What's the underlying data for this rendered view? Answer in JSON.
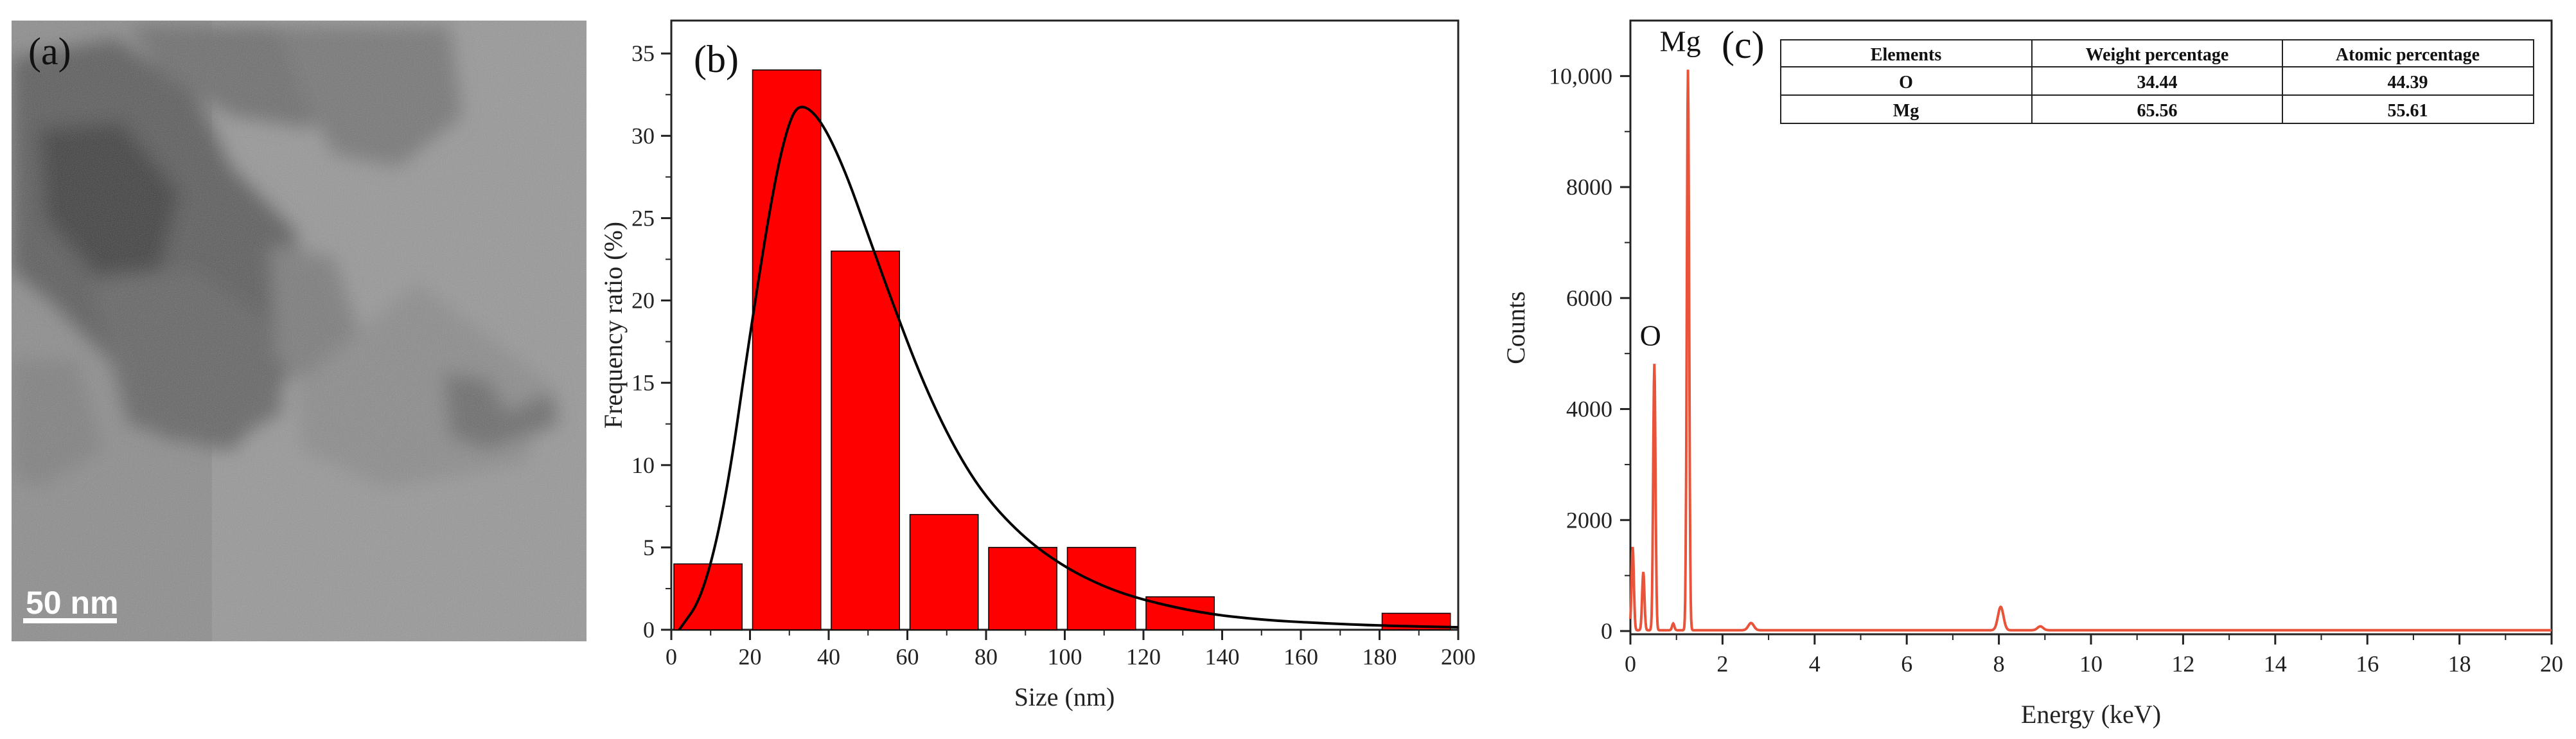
{
  "colors": {
    "bar": "#ff0000",
    "fit": "#000000",
    "eds": "#e8533a",
    "tem_bg": "#8a8a8a"
  },
  "panel_a": {
    "label": "(a)",
    "scale_bar_text": "50 nm"
  },
  "chart_data": [
    {
      "panel": "(b)",
      "type": "bar",
      "xlabel": "Size (nm)",
      "ylabel": "Frequency ratio (%)",
      "xlim": [
        0,
        200
      ],
      "ylim": [
        0,
        37
      ],
      "xticks": [
        "0",
        "20",
        "40",
        "60",
        "80",
        "100",
        "120",
        "140",
        "160",
        "180",
        "200"
      ],
      "yticks": [
        "0",
        "5",
        "10",
        "15",
        "20",
        "25",
        "30",
        "35"
      ],
      "bars": [
        {
          "x0": 0,
          "x1": 18,
          "value": 4
        },
        {
          "x0": 20,
          "x1": 38,
          "value": 34
        },
        {
          "x0": 40,
          "x1": 58,
          "value": 23
        },
        {
          "x0": 60,
          "x1": 78,
          "value": 7
        },
        {
          "x0": 80,
          "x1": 98,
          "value": 5
        },
        {
          "x0": 100,
          "x1": 118,
          "value": 5
        },
        {
          "x0": 120,
          "x1": 138,
          "value": 2
        },
        {
          "x0": 180,
          "x1": 198,
          "value": 1
        }
      ],
      "fit_curve": {
        "type": "lognormal",
        "peak_x": 33,
        "peak_y": 32,
        "points": [
          [
            2,
            0
          ],
          [
            8,
            2
          ],
          [
            14,
            8
          ],
          [
            20,
            18
          ],
          [
            26,
            27
          ],
          [
            30,
            31
          ],
          [
            33,
            32
          ],
          [
            38,
            31
          ],
          [
            44,
            28
          ],
          [
            50,
            24
          ],
          [
            56,
            20
          ],
          [
            64,
            15
          ],
          [
            72,
            11
          ],
          [
            80,
            8
          ],
          [
            90,
            5.5
          ],
          [
            100,
            3.8
          ],
          [
            110,
            2.6
          ],
          [
            120,
            1.8
          ],
          [
            135,
            1.0
          ],
          [
            150,
            0.6
          ],
          [
            165,
            0.4
          ],
          [
            180,
            0.25
          ],
          [
            200,
            0.15
          ]
        ]
      }
    },
    {
      "panel": "(c)",
      "type": "line",
      "xlabel": "Energy (keV)",
      "ylabel": "Counts",
      "xlim": [
        0,
        20
      ],
      "ylim": [
        0,
        11000
      ],
      "xticks": [
        "0",
        "2",
        "4",
        "6",
        "8",
        "10",
        "12",
        "14",
        "16",
        "18",
        "20"
      ],
      "yticks": [
        "0",
        "2000",
        "4000",
        "6000",
        "8000",
        "10,000"
      ],
      "ytick_values": [
        0,
        2000,
        4000,
        6000,
        8000,
        10000
      ],
      "peaks": [
        {
          "x": 0.05,
          "y": 1500
        },
        {
          "x": 0.28,
          "y": 1050
        },
        {
          "x": 0.52,
          "y": 4800,
          "label": "O"
        },
        {
          "x": 0.93,
          "y": 120
        },
        {
          "x": 1.25,
          "y": 10100,
          "label": "Mg"
        },
        {
          "x": 2.62,
          "y": 130
        },
        {
          "x": 8.04,
          "y": 420
        },
        {
          "x": 8.9,
          "y": 70
        }
      ],
      "table": {
        "headers": [
          "Elements",
          "Weight percentage",
          "Atomic percentage"
        ],
        "rows": [
          [
            "O",
            "34.44",
            "44.39"
          ],
          [
            "Mg",
            "65.56",
            "55.61"
          ]
        ]
      }
    }
  ]
}
